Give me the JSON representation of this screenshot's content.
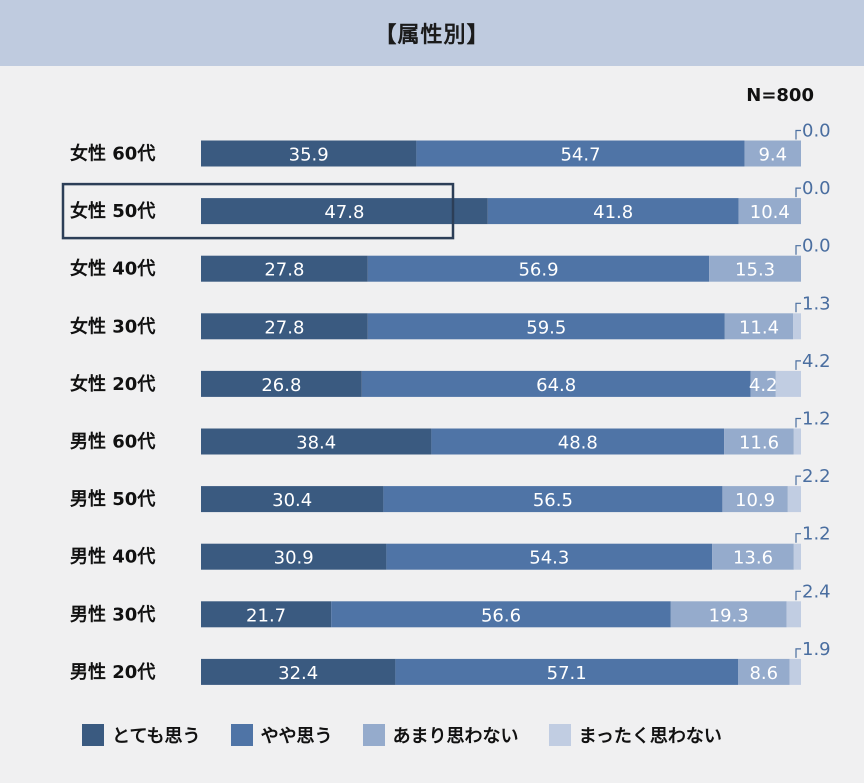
{
  "header": {
    "title": "【属性別】"
  },
  "colors": {
    "strongly_agree": "#3a5a80",
    "somewhat_agree": "#4f74a6",
    "not_really": "#95abcc",
    "not_at_all": "#c1cde2",
    "highlight_border": "#2c3e57",
    "outside_label": "#4a6ea0"
  },
  "chart_data": {
    "type": "bar",
    "orientation": "horizontal",
    "stacked": true,
    "percent": true,
    "sample_note": "N=800",
    "categories": [
      "女性 60代",
      "女性 50代",
      "女性 40代",
      "女性 30代",
      "女性 20代",
      "男性 60代",
      "男性 50代",
      "男性 40代",
      "男性 30代",
      "男性 20代"
    ],
    "highlighted_category": "女性 50代",
    "series": [
      {
        "name": "とても思う",
        "values": [
          35.9,
          47.8,
          27.8,
          27.8,
          26.8,
          38.4,
          30.4,
          30.9,
          21.7,
          32.4
        ]
      },
      {
        "name": "やや思う",
        "values": [
          54.7,
          41.8,
          56.9,
          59.5,
          64.8,
          48.8,
          56.5,
          54.3,
          56.6,
          57.1
        ]
      },
      {
        "name": "あまり思わない",
        "values": [
          9.4,
          10.4,
          15.3,
          11.4,
          4.2,
          11.6,
          10.9,
          13.6,
          19.3,
          8.6
        ]
      },
      {
        "name": "まったく思わない",
        "values": [
          0.0,
          0.0,
          0.0,
          1.3,
          4.2,
          1.2,
          2.2,
          1.2,
          2.4,
          1.9
        ]
      }
    ],
    "value_labels": [
      [
        "35.9",
        "54.7",
        "9.4",
        "0.0"
      ],
      [
        "47.8",
        "41.8",
        "10.4",
        "0.0"
      ],
      [
        "27.8",
        "56.9",
        "15.3",
        "0.0"
      ],
      [
        "27.8",
        "59.5",
        "11.4",
        "1.3"
      ],
      [
        "26.8",
        "64.8",
        "4.2",
        "4.2"
      ],
      [
        "38.4",
        "48.8",
        "11.6",
        "1.2"
      ],
      [
        "30.4",
        "56.5",
        "10.9",
        "2.2"
      ],
      [
        "30.9",
        "54.3",
        "13.6",
        "1.2"
      ],
      [
        "21.7",
        "56.6",
        "19.3",
        "2.4"
      ],
      [
        "32.4",
        "57.1",
        "8.6",
        "1.9"
      ]
    ],
    "legend_position": "bottom",
    "xlim": [
      0,
      100
    ]
  }
}
